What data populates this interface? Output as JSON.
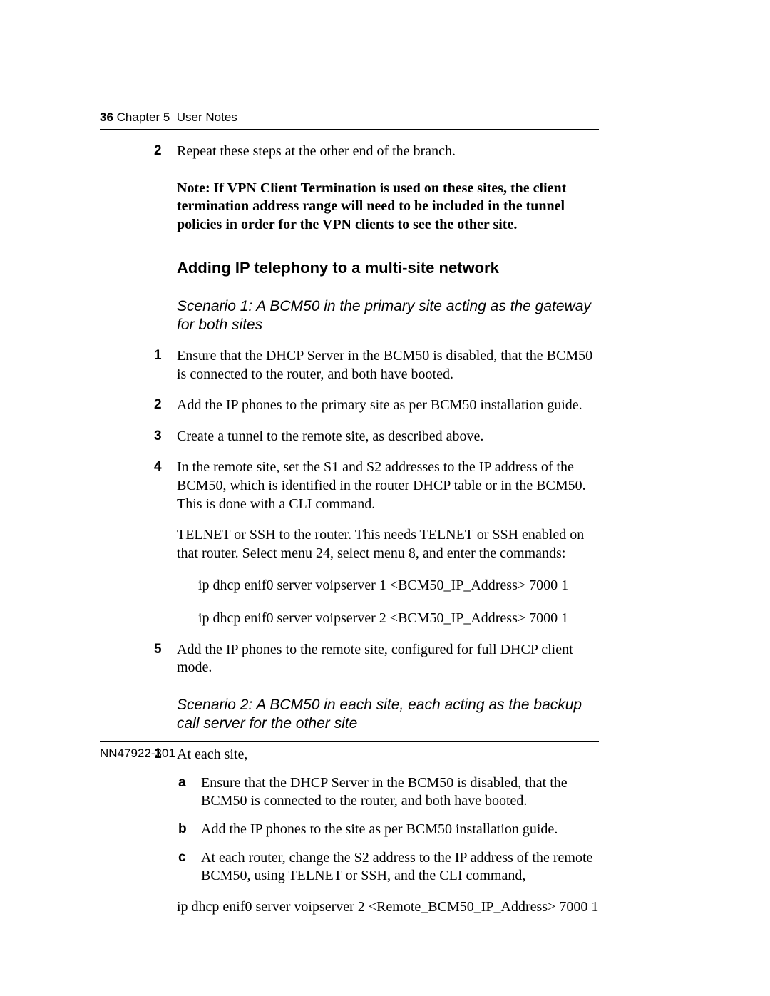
{
  "header": {
    "page_number": "36",
    "chapter_label": "Chapter 5",
    "chapter_title": "User Notes"
  },
  "step2": {
    "marker": "2",
    "text": "Repeat these steps at the other end of the branch."
  },
  "note": "Note: If VPN Client Termination is used on these sites, the client termination address range will need to be included in the tunnel policies in order for the VPN clients to see the other site.",
  "heading_h2": "Adding IP telephony to a multi-site network",
  "scenario1": {
    "title": "Scenario 1: A BCM50 in the primary site acting as the gateway for both sites",
    "items": {
      "i1": {
        "marker": "1",
        "text": "Ensure that the DHCP Server in the BCM50 is disabled, that the BCM50 is connected to the router, and both have booted."
      },
      "i2": {
        "marker": "2",
        "text": "Add the IP phones to the primary site as per BCM50 installation guide."
      },
      "i3": {
        "marker": "3",
        "text": "Create a tunnel to the remote site, as described above."
      },
      "i4": {
        "marker": "4",
        "text": "In the remote site, set the S1 and S2 addresses to the IP address of the BCM50, which is identified in the router DHCP table or in the BCM50.  This is done with a CLI command."
      }
    },
    "telnet_para": "TELNET or SSH to the router.  This needs TELNET or SSH enabled on that router.  Select menu 24, select menu 8, and enter the commands:",
    "cmd1": "ip dhcp enif0 server voipserver 1 <BCM50_IP_Address> 7000 1",
    "cmd2": "ip dhcp enif0 server voipserver 2 <BCM50_IP_Address> 7000 1",
    "i5": {
      "marker": "5",
      "text": "Add the IP phones to the remote site, configured for full DHCP client mode."
    }
  },
  "scenario2": {
    "title": "Scenario 2: A BCM50 in each site, each acting as the backup call server for the other site",
    "i1": {
      "marker": "1",
      "text": "At each site,"
    },
    "sub": {
      "a": {
        "marker": "a",
        "text": "Ensure that the DHCP Server in the BCM50 is disabled, that the BCM50 is connected to the router, and both have booted."
      },
      "b": {
        "marker": "b",
        "text": "Add the IP phones to the site as per BCM50 installation guide."
      },
      "c": {
        "marker": "c",
        "text": "At each router, change the S2 address to the IP address of the remote BCM50, using TELNET or SSH, and the CLI command,"
      }
    },
    "cmd": "ip dhcp enif0 server voipserver 2 <Remote_BCM50_IP_Address> 7000 1"
  },
  "footer": {
    "doc_id": "NN47922-301"
  }
}
